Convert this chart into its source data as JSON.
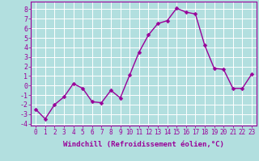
{
  "x": [
    0,
    1,
    2,
    3,
    4,
    5,
    6,
    7,
    8,
    9,
    10,
    11,
    12,
    13,
    14,
    15,
    16,
    17,
    18,
    19,
    20,
    21,
    22,
    23
  ],
  "y": [
    -2.5,
    -3.5,
    -2.0,
    -1.2,
    0.2,
    -0.3,
    -1.7,
    -1.8,
    -0.5,
    -1.3,
    1.1,
    3.5,
    5.3,
    6.5,
    6.8,
    8.1,
    7.7,
    7.5,
    4.2,
    1.8,
    1.7,
    -0.3,
    -0.3,
    1.2
  ],
  "line_color": "#990099",
  "marker": "D",
  "marker_size": 2.5,
  "line_width": 1.0,
  "background_color": "#b2dfdf",
  "grid_color": "#ffffff",
  "xlabel": "Windchill (Refroidissement éolien,°C)",
  "xlabel_fontsize": 6.5,
  "xtick_fontsize": 5.5,
  "ytick_fontsize": 6.0,
  "ylim": [
    -4.2,
    8.8
  ],
  "xlim": [
    -0.5,
    23.5
  ],
  "yticks": [
    -4,
    -3,
    -2,
    -1,
    0,
    1,
    2,
    3,
    4,
    5,
    6,
    7,
    8
  ],
  "xticks": [
    0,
    1,
    2,
    3,
    4,
    5,
    6,
    7,
    8,
    9,
    10,
    11,
    12,
    13,
    14,
    15,
    16,
    17,
    18,
    19,
    20,
    21,
    22,
    23
  ],
  "label_color": "#990099",
  "tick_color": "#990099"
}
